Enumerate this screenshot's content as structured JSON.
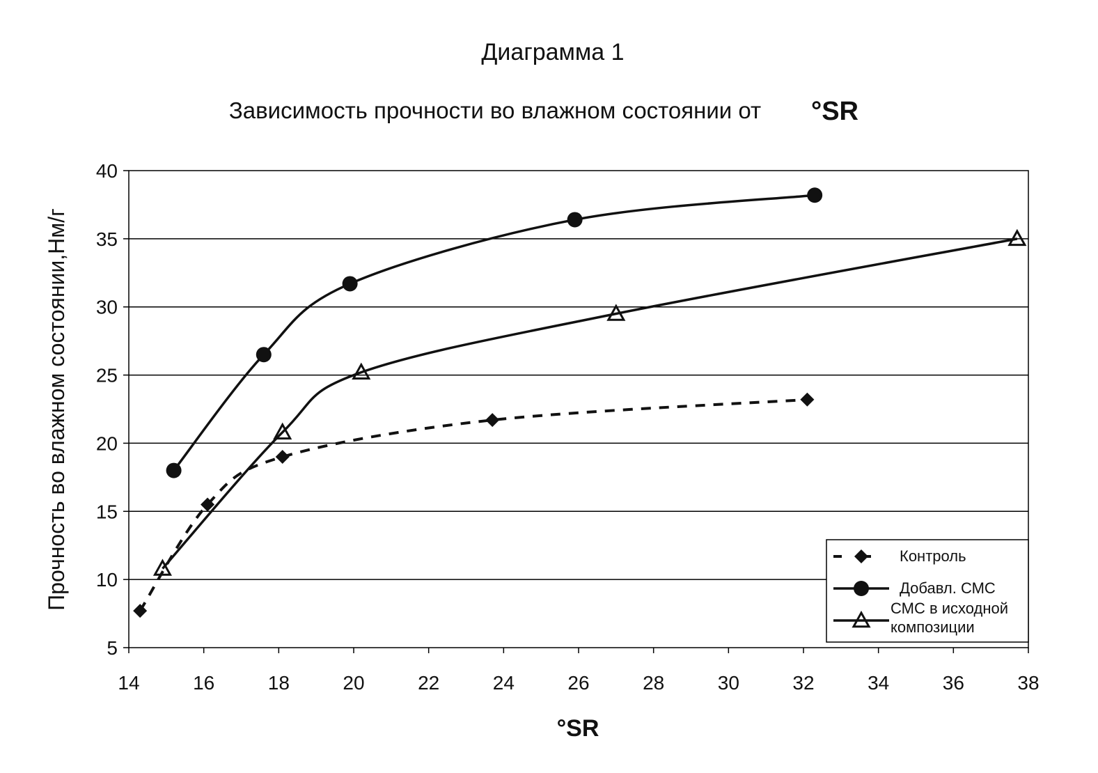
{
  "chart_data": {
    "type": "line",
    "title": "Диаграмма 1",
    "subtitle": "Зависимость прочности во влажном состоянии от",
    "subtitle_unit": "°SR",
    "xlabel": "°SR",
    "ylabel": "Прочность во влажном состоянии,Нм/г",
    "xlim": [
      14,
      38
    ],
    "ylim": [
      5,
      40
    ],
    "xticks": [
      14,
      16,
      18,
      20,
      22,
      24,
      26,
      28,
      30,
      32,
      34,
      36,
      38
    ],
    "yticks": [
      5,
      10,
      15,
      20,
      25,
      30,
      35,
      40
    ],
    "grid": "horizontal",
    "legend_position": "bottom-right",
    "series": [
      {
        "name": "Контроль",
        "marker": "diamond",
        "line_style": "dashed",
        "x": [
          14.3,
          16.1,
          18.1,
          23.7,
          32.1
        ],
        "y": [
          7.7,
          15.5,
          19.0,
          21.7,
          23.2
        ]
      },
      {
        "name": "Добавл. СМС",
        "marker": "circle",
        "line_style": "solid",
        "x": [
          15.2,
          17.6,
          19.9,
          25.9,
          32.3
        ],
        "y": [
          18.0,
          26.5,
          31.7,
          36.4,
          38.2
        ]
      },
      {
        "name": "СМС в исходной композиции",
        "legend_lines": [
          "СМС в исходной",
          "композиции"
        ],
        "marker": "triangle",
        "line_style": "solid",
        "x": [
          14.9,
          18.1,
          20.2,
          27.0,
          37.7
        ],
        "y": [
          10.8,
          20.8,
          25.2,
          29.5,
          35.0
        ]
      }
    ],
    "colors": {
      "line": "#111111",
      "grid": "#000000",
      "background": "#ffffff"
    }
  }
}
